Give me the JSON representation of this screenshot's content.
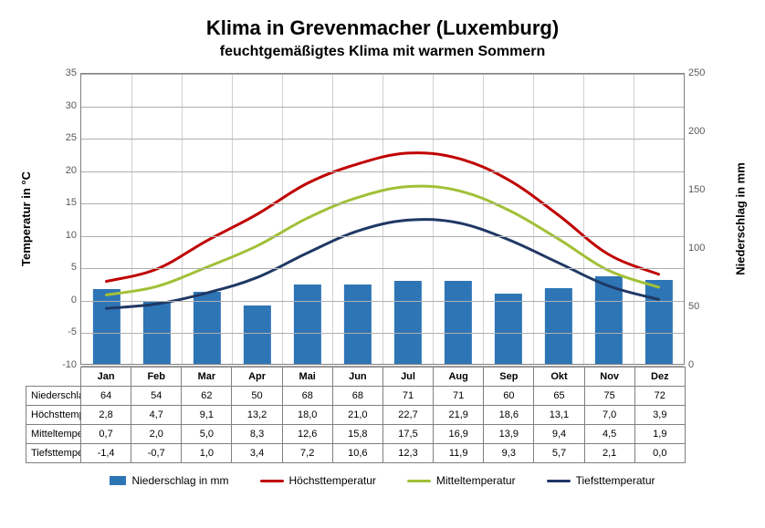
{
  "title": "Klima in Grevenmacher (Luxemburg)",
  "subtitle": "feuchtgemäßigtes Klima mit warmen Sommern",
  "axis_left_title": "Temperatur  in  °C",
  "axis_right_title": "Niederschlag  in  mm",
  "categories": [
    "Jan",
    "Feb",
    "Mar",
    "Apr",
    "Mai",
    "Jun",
    "Jul",
    "Aug",
    "Sep",
    "Okt",
    "Nov",
    "Dez"
  ],
  "left_axis": {
    "min": -10,
    "max": 35,
    "ticks": [
      -10,
      -5,
      0,
      5,
      10,
      15,
      20,
      25,
      30,
      35
    ]
  },
  "right_axis": {
    "min": 0,
    "max": 250,
    "ticks": [
      0,
      50,
      100,
      150,
      200,
      250
    ]
  },
  "series": {
    "precip": {
      "label": "Niederschlag in mm",
      "type": "bar",
      "color": "#2e75b6",
      "axis": "right",
      "bar_width_frac": 0.55,
      "values": [
        64,
        54,
        62,
        50,
        68,
        68,
        71,
        71,
        60,
        65,
        75,
        72
      ]
    },
    "high": {
      "label": "Höchsttemperatur",
      "type": "line",
      "color": "#c00000",
      "axis": "left",
      "line_width": 3,
      "values": [
        2.8,
        4.7,
        9.1,
        13.2,
        18.0,
        21.0,
        22.7,
        21.9,
        18.6,
        13.1,
        7.0,
        3.9
      ]
    },
    "mean": {
      "label": "Mitteltemperatur",
      "type": "line",
      "color": "#a2c037",
      "axis": "left",
      "line_width": 3,
      "values": [
        0.7,
        2.0,
        5.0,
        8.3,
        12.6,
        15.8,
        17.5,
        16.9,
        13.9,
        9.4,
        4.5,
        1.9
      ]
    },
    "low": {
      "label": "Tiefsttemperatur",
      "type": "line",
      "color": "#1f3864",
      "axis": "left",
      "line_width": 3,
      "values": [
        -1.4,
        -0.7,
        1.0,
        3.4,
        7.2,
        10.6,
        12.3,
        11.9,
        9.3,
        5.7,
        2.1,
        0.0
      ]
    }
  },
  "table_rows_order": [
    "precip",
    "high",
    "mean",
    "low"
  ],
  "table_row_labels": {
    "precip": "Niederschlag in mm",
    "high": "Höchsttemperatur",
    "mean": "Mitteltemperatur",
    "low": "Tiefsttemperatur"
  },
  "colors": {
    "grid": "#b0b0b0",
    "cat_sep": "#d0d0d0",
    "border": "#808080",
    "background": "#ffffff",
    "text": "#000000",
    "tick_text": "#595959"
  },
  "fontsize": {
    "title": 22,
    "subtitle": 16,
    "axis_title": 13,
    "ticks": 11,
    "table": 11,
    "legend": 12
  },
  "legend_order": [
    "precip",
    "high",
    "mean",
    "low"
  ]
}
